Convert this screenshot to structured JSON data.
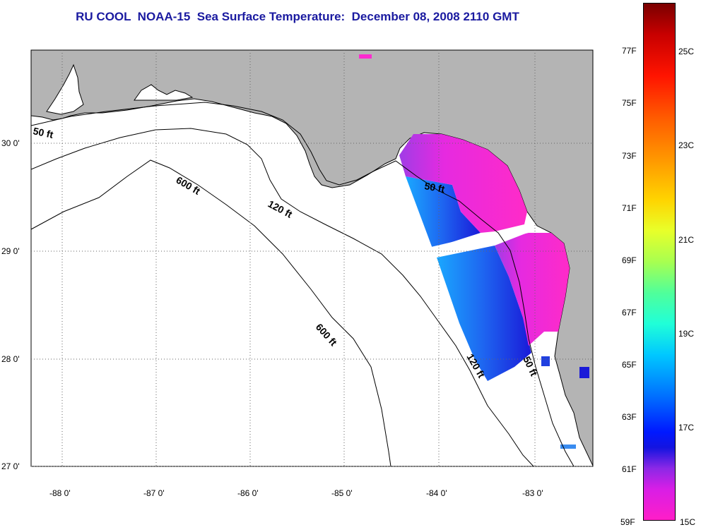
{
  "title": "RU COOL  NOAA-15  Sea Surface Temperature:  December 08, 2008 2110 GMT",
  "map": {
    "lat_labels": [
      "30 0'",
      "29 0'",
      "28 0'",
      "27 0'"
    ],
    "lon_labels": [
      "-88 0'",
      "-87 0'",
      "-86 0'",
      "-85 0'",
      "-84 0'",
      "-83 0'"
    ],
    "contour_labels": [
      "50 ft",
      "600 ft",
      "120 ft",
      "50 ft",
      "600 ft",
      "120 ft",
      "50 ft"
    ],
    "colors": {
      "land": "#b4b4b4",
      "water": "#ffffff",
      "warm_sst": "#ff2bd0",
      "cool_sst": "#2a6cf0"
    }
  },
  "colorbar": {
    "f_labels": [
      "77F",
      "75F",
      "73F",
      "71F",
      "69F",
      "67F",
      "65F",
      "63F",
      "61F",
      "59F"
    ],
    "c_labels": [
      "25C",
      "23C",
      "21C",
      "19C",
      "17C",
      "15C"
    ]
  }
}
